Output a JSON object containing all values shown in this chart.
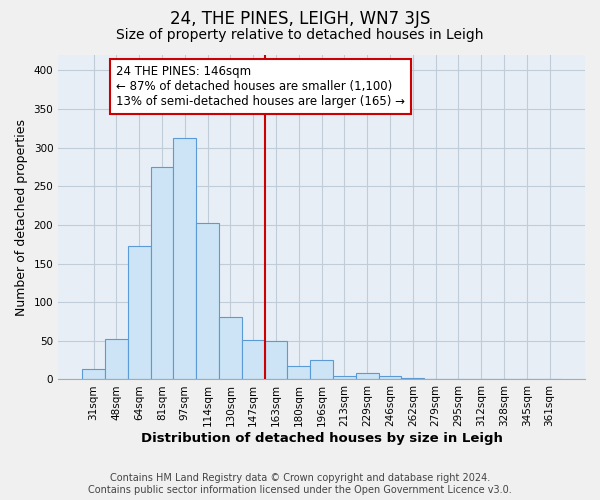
{
  "title": "24, THE PINES, LEIGH, WN7 3JS",
  "subtitle": "Size of property relative to detached houses in Leigh",
  "xlabel": "Distribution of detached houses by size in Leigh",
  "ylabel": "Number of detached properties",
  "categories": [
    "31sqm",
    "48sqm",
    "64sqm",
    "81sqm",
    "97sqm",
    "114sqm",
    "130sqm",
    "147sqm",
    "163sqm",
    "180sqm",
    "196sqm",
    "213sqm",
    "229sqm",
    "246sqm",
    "262sqm",
    "279sqm",
    "295sqm",
    "312sqm",
    "328sqm",
    "345sqm",
    "361sqm"
  ],
  "values": [
    13,
    53,
    173,
    275,
    312,
    203,
    81,
    51,
    50,
    17,
    25,
    5,
    9,
    4,
    2,
    1,
    1,
    0,
    1,
    0,
    0
  ],
  "bar_color": "#cce4f5",
  "bar_edge_color": "#5b9bd5",
  "vline_x": 7.5,
  "vline_color": "#cc0000",
  "annotation_line1": "24 THE PINES: 146sqm",
  "annotation_line2": "← 87% of detached houses are smaller (1,100)",
  "annotation_line3": "13% of semi-detached houses are larger (165) →",
  "annotation_box_edge_color": "#cc0000",
  "ylim": [
    0,
    420
  ],
  "yticks": [
    0,
    50,
    100,
    150,
    200,
    250,
    300,
    350,
    400
  ],
  "footer_line1": "Contains HM Land Registry data © Crown copyright and database right 2024.",
  "footer_line2": "Contains public sector information licensed under the Open Government Licence v3.0.",
  "background_color": "#f0f0f0",
  "plot_background_color": "#e8eef5",
  "grid_color": "#c0ccd8",
  "title_fontsize": 12,
  "subtitle_fontsize": 10,
  "xlabel_fontsize": 9.5,
  "ylabel_fontsize": 9,
  "tick_fontsize": 7.5,
  "annotation_fontsize": 8.5,
  "footer_fontsize": 7
}
